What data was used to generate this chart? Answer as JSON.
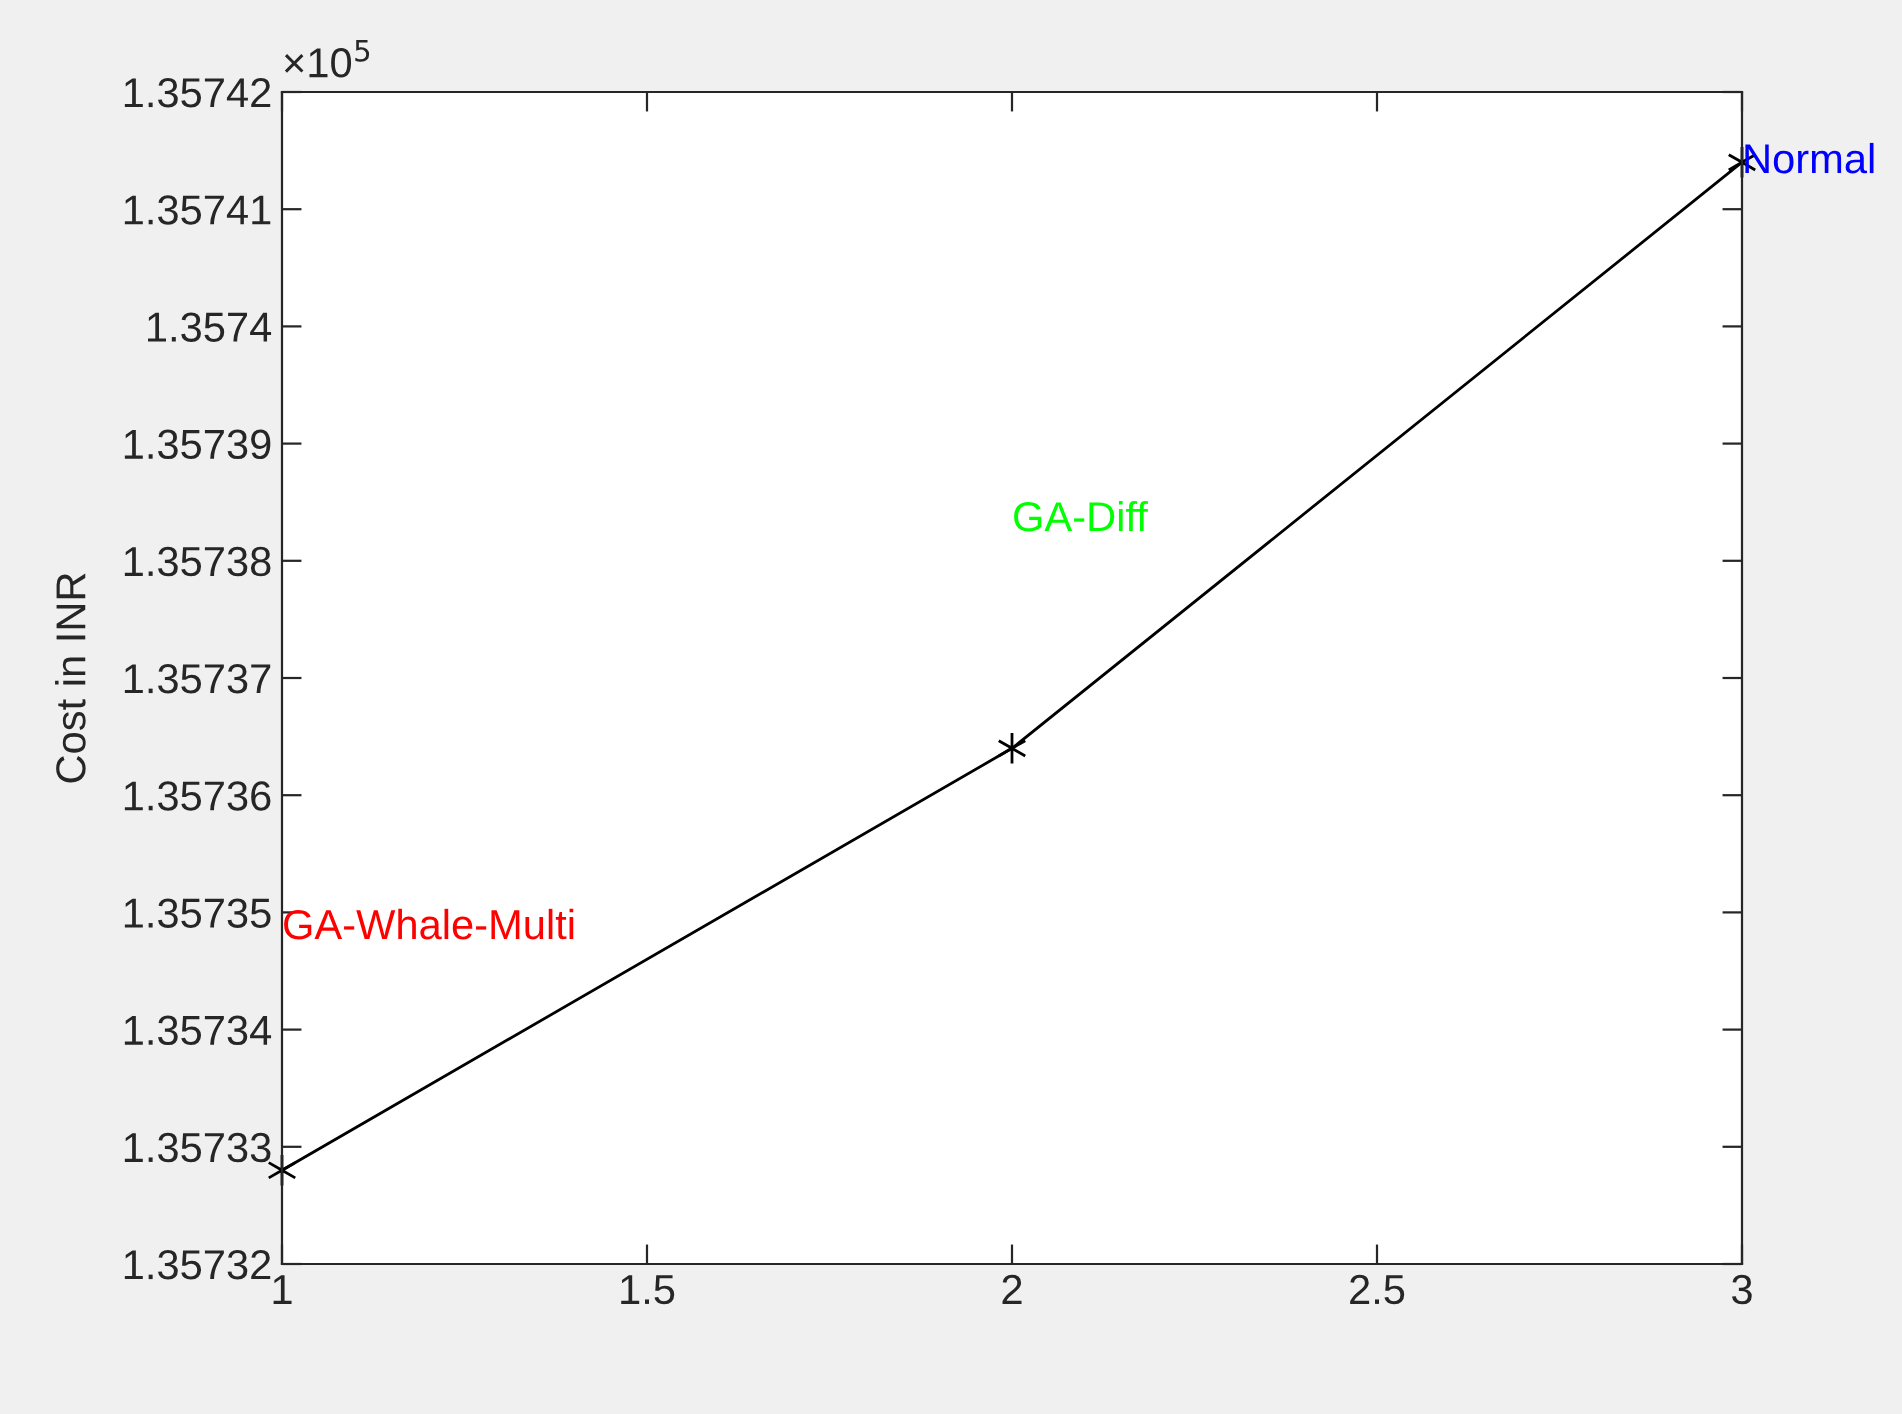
{
  "chart_data": {
    "type": "line",
    "ylabel": "Cost in INR",
    "x": [
      1,
      2,
      3
    ],
    "series": [
      {
        "color": "#000000",
        "values": [
          1.357328,
          1.357364,
          1.357414
        ]
      }
    ],
    "marker": "cross",
    "line_style": "solid",
    "grid": false,
    "legend": false,
    "xlim": [
      1,
      3
    ],
    "xticks": [
      1,
      1.5,
      2,
      2.5,
      3
    ],
    "ylim": [
      1.35732,
      1.35742
    ],
    "yticks": [
      1.35732,
      1.35733,
      1.35734,
      1.35735,
      1.35736,
      1.35737,
      1.35738,
      1.35739,
      1.3574,
      1.35741,
      1.35742
    ],
    "annotations": [
      "×10$^{5}$",
      "GA-Whale-Multi",
      "GA-Diff",
      "Normal"
    ]
  }
}
